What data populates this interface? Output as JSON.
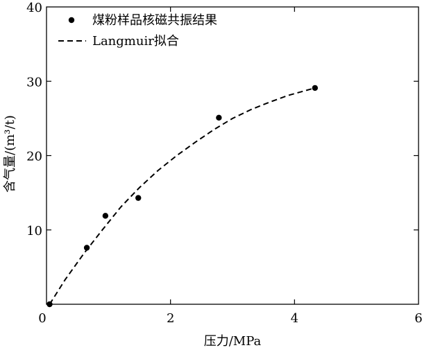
{
  "chart_data": {
    "type": "scatter",
    "title": "",
    "xlabel": "压力/MPa",
    "ylabel": "含气量/(m³/t)",
    "xlim": [
      0,
      6
    ],
    "ylim": [
      0,
      40
    ],
    "xticks": [
      0,
      2,
      4,
      6
    ],
    "yticks": [
      10,
      20,
      30,
      40
    ],
    "xtick_labels": [
      "0",
      "2",
      "4",
      "6"
    ],
    "ytick_labels": [
      "10",
      "20",
      "30",
      "40"
    ],
    "grid": false,
    "legend_position": "top-left",
    "series": [
      {
        "name": "煤粉样品核磁共振结果",
        "kind": "scatter",
        "marker": "filled-circle",
        "color": "#000000",
        "points": [
          {
            "x": 0.05,
            "y": 0.0
          },
          {
            "x": 0.65,
            "y": 7.6
          },
          {
            "x": 0.95,
            "y": 11.9
          },
          {
            "x": 1.48,
            "y": 14.3
          },
          {
            "x": 2.78,
            "y": 25.1
          },
          {
            "x": 4.33,
            "y": 29.1
          }
        ]
      },
      {
        "name": "Langmuir拟合",
        "kind": "line",
        "style": "dashed",
        "color": "#000000",
        "points": [
          {
            "x": 0.05,
            "y": 0.0
          },
          {
            "x": 0.3,
            "y": 3.3
          },
          {
            "x": 0.6,
            "y": 6.8
          },
          {
            "x": 0.9,
            "y": 10.0
          },
          {
            "x": 1.2,
            "y": 13.1
          },
          {
            "x": 1.5,
            "y": 15.7
          },
          {
            "x": 1.8,
            "y": 18.0
          },
          {
            "x": 2.1,
            "y": 20.0
          },
          {
            "x": 2.4,
            "y": 21.8
          },
          {
            "x": 2.7,
            "y": 23.5
          },
          {
            "x": 3.0,
            "y": 25.0
          },
          {
            "x": 3.3,
            "y": 26.2
          },
          {
            "x": 3.6,
            "y": 27.2
          },
          {
            "x": 3.9,
            "y": 28.1
          },
          {
            "x": 4.2,
            "y": 28.8
          },
          {
            "x": 4.33,
            "y": 29.1
          }
        ]
      }
    ]
  }
}
